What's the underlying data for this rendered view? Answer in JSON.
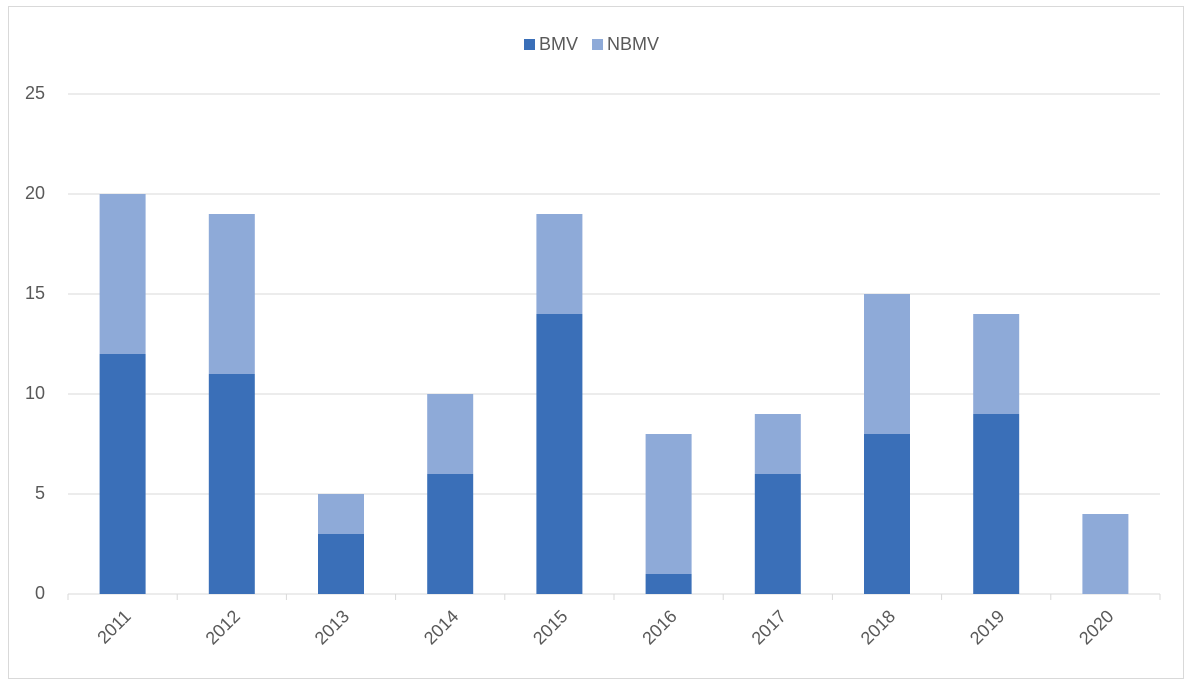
{
  "chart_data": {
    "type": "bar",
    "stacked": true,
    "categories": [
      "2011",
      "2012",
      "2013",
      "2014",
      "2015",
      "2016",
      "2017",
      "2018",
      "2019",
      "2020"
    ],
    "series": [
      {
        "name": "BMV",
        "color": "#3a6fb8",
        "values": [
          12,
          11,
          3,
          6,
          14,
          1,
          6,
          8,
          9,
          0
        ]
      },
      {
        "name": "NBMV",
        "color": "#8eaad8",
        "values": [
          8,
          8,
          2,
          4,
          5,
          7,
          3,
          7,
          5,
          4
        ]
      }
    ],
    "ylim": [
      0,
      25
    ],
    "yticks": [
      0,
      5,
      10,
      15,
      20,
      25
    ],
    "grid": true,
    "legend": "top"
  }
}
